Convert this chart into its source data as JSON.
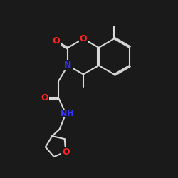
{
  "bg_color": "#1a1a1a",
  "bond_color": "#d8d8d8",
  "bond_width": 1.5,
  "dbo": 0.06,
  "atom_colors": {
    "N": "#3333ff",
    "O": "#ff2222",
    "NH": "#3333ff"
  },
  "fontsize": 9,
  "fig_size": [
    2.5,
    2.5
  ],
  "dpi": 100
}
